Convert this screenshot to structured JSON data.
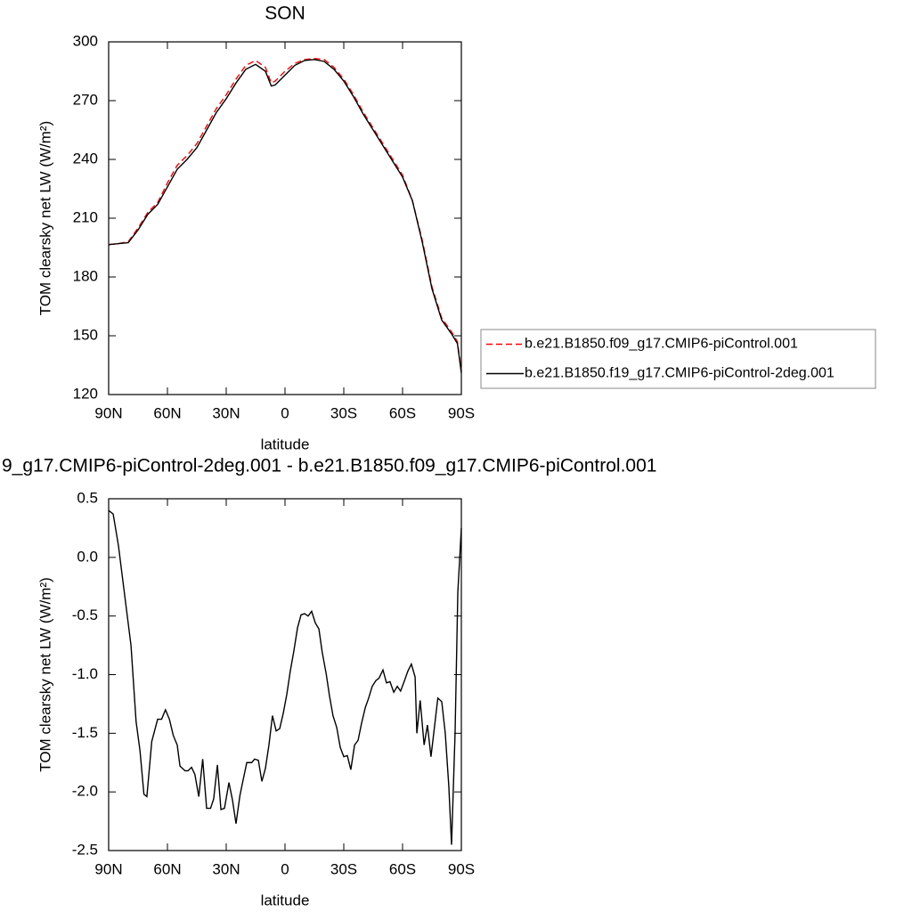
{
  "chart_data": [
    {
      "type": "line",
      "title": "SON",
      "xlabel": "latitude",
      "ylabel": "TOM clearsky net LW (W/m²)",
      "xlim": [
        90,
        -90
      ],
      "xticks": [
        {
          "value": 90,
          "label": "90N"
        },
        {
          "value": 60,
          "label": "60N"
        },
        {
          "value": 30,
          "label": "30N"
        },
        0,
        {
          "value": -30,
          "label": "30S"
        },
        {
          "value": -60,
          "label": "60S"
        },
        {
          "value": -90,
          "label": "90S"
        }
      ],
      "ylim": [
        120,
        300
      ],
      "yticks": [
        120,
        150,
        180,
        210,
        240,
        270,
        300
      ],
      "legend": "right",
      "x": [
        90,
        85,
        80,
        75,
        70,
        65,
        60,
        55,
        50,
        45,
        40,
        35,
        30,
        25,
        20,
        15,
        10,
        7,
        5,
        0,
        -5,
        -10,
        -15,
        -20,
        -25,
        -30,
        -35,
        -40,
        -45,
        -50,
        -55,
        -60,
        -65,
        -70,
        -75,
        -80,
        -85,
        -88,
        -90
      ],
      "series": [
        {
          "name": "b.e21.B1850.f09_g17.CMIP6-piControl.001",
          "color": "#ff0000",
          "dash": true,
          "values": [
            196.5,
            197,
            198,
            205,
            213,
            218,
            228,
            237,
            242,
            248,
            257,
            266,
            273,
            281,
            288,
            290.5,
            287,
            279,
            280,
            285,
            289,
            291,
            291.5,
            291,
            287,
            281,
            273,
            264,
            256,
            248,
            240,
            232,
            219,
            199,
            175,
            159,
            152,
            147,
            132
          ]
        },
        {
          "name": "b.e21.B1850.f19_g17.CMIP6-piControl-2deg.001",
          "color": "#000000",
          "dash": false,
          "values": [
            196.5,
            197,
            197.5,
            204,
            212,
            217,
            226,
            235,
            240,
            246,
            255,
            264,
            271,
            279,
            286,
            288.5,
            285,
            277.5,
            278,
            283,
            288,
            290.5,
            291,
            290,
            286,
            280,
            272,
            263,
            255,
            247,
            239,
            231,
            219,
            198,
            174,
            158,
            151,
            146,
            131
          ]
        }
      ]
    },
    {
      "type": "line",
      "title": "9_g17.CMIP6-piControl-2deg.001 - b.e21.B1850.f09_g17.CMIP6-piControl.001",
      "xlabel": "latitude",
      "ylabel": "TOM clearsky net LW (W/m²)",
      "xlim": [
        90,
        -90
      ],
      "xticks": [
        {
          "value": 90,
          "label": "90N"
        },
        {
          "value": 60,
          "label": "60N"
        },
        {
          "value": 30,
          "label": "30N"
        },
        0,
        {
          "value": -30,
          "label": "30S"
        },
        {
          "value": -60,
          "label": "60S"
        },
        {
          "value": -90,
          "label": "90S"
        }
      ],
      "ylim": [
        -2.5,
        0.5
      ],
      "yticks": [
        -2.5,
        {
          "value": -2,
          "label": "-2.0"
        },
        -1.5,
        {
          "value": -1,
          "label": "-1.0"
        },
        -0.5,
        {
          "value": 0,
          "label": "0.0"
        },
        0.5
      ],
      "color": "#000000",
      "x": [
        90,
        87.7,
        85,
        82,
        78.6,
        76,
        74,
        72,
        70.5,
        68,
        65,
        63,
        61,
        59,
        57,
        55,
        53.6,
        51,
        49.5,
        47.7,
        46,
        44,
        42,
        40,
        38,
        36.4,
        34.5,
        32.7,
        30.9,
        28.6,
        26.8,
        25,
        23,
        21.4,
        19.5,
        17,
        15.5,
        13.6,
        11.8,
        10,
        8.2,
        6.4,
        4.5,
        2.7,
        0.9,
        -0.9,
        -2.7,
        -4.5,
        -6.4,
        -8.2,
        -10,
        -11.8,
        -13.6,
        -15.5,
        -17.3,
        -19,
        -21,
        -22.7,
        -24.5,
        -26.4,
        -28.2,
        -30,
        -31.8,
        -33.6,
        -35.5,
        -37.3,
        -39,
        -41,
        -42.7,
        -44.5,
        -46.4,
        -48,
        -50,
        -51.8,
        -53.6,
        -55.5,
        -57.3,
        -59,
        -61,
        -62.7,
        -64.5,
        -66.4,
        -67.3,
        -69,
        -71,
        -72.7,
        -74.5,
        -76.4,
        -78,
        -80,
        -81.8,
        -83.6,
        -85,
        -86.8,
        -88.2,
        -90
      ],
      "values": [
        0.4,
        0.37,
        0.1,
        -0.3,
        -0.75,
        -1.4,
        -1.65,
        -2.02,
        -2.04,
        -1.57,
        -1.38,
        -1.38,
        -1.3,
        -1.38,
        -1.52,
        -1.6,
        -1.78,
        -1.82,
        -1.82,
        -1.79,
        -1.85,
        -2.04,
        -1.72,
        -2.14,
        -2.14,
        -2.06,
        -1.77,
        -2.15,
        -2.14,
        -1.92,
        -2.07,
        -2.27,
        -2.03,
        -1.9,
        -1.75,
        -1.75,
        -1.72,
        -1.73,
        -1.91,
        -1.8,
        -1.6,
        -1.35,
        -1.48,
        -1.46,
        -1.33,
        -1.17,
        -0.97,
        -0.8,
        -0.6,
        -0.49,
        -0.48,
        -0.5,
        -0.46,
        -0.56,
        -0.61,
        -0.81,
        -0.99,
        -1.18,
        -1.35,
        -1.45,
        -1.62,
        -1.7,
        -1.69,
        -1.81,
        -1.6,
        -1.56,
        -1.42,
        -1.28,
        -1.2,
        -1.1,
        -1.05,
        -1.03,
        -0.96,
        -1.07,
        -1.06,
        -1.15,
        -1.1,
        -1.14,
        -1.05,
        -0.97,
        -0.91,
        -1.02,
        -1.5,
        -1.22,
        -1.6,
        -1.43,
        -1.7,
        -1.43,
        -1.2,
        -1.23,
        -1.5,
        -1.95,
        -2.45,
        -1.5,
        -0.3,
        0.25
      ]
    }
  ]
}
